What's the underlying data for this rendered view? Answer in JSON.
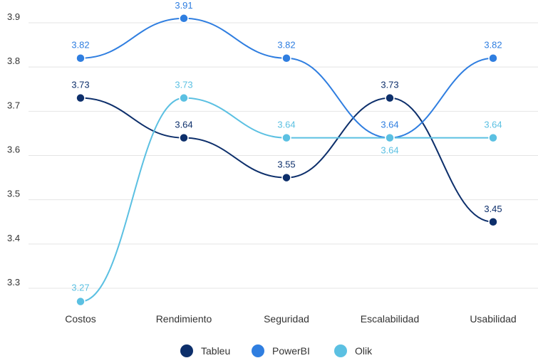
{
  "chart_data": {
    "type": "line",
    "title": "",
    "xlabel": "",
    "ylabel": "",
    "categories": [
      "Costos",
      "Rendimiento",
      "Seguridad",
      "Escalabilidad",
      "Usabilidad"
    ],
    "y_ticks": [
      "3.3",
      "3.4",
      "3.5",
      "3.6",
      "3.7",
      "3.8",
      "3.9"
    ],
    "ylim": [
      3.24,
      3.96
    ],
    "grid": true,
    "legend_position": "bottom-center",
    "series": [
      {
        "name": "Tableu",
        "color": "#0d2f6b",
        "values": [
          3.73,
          3.64,
          3.55,
          3.73,
          3.45
        ],
        "labels": [
          "3.73",
          "3.64",
          "3.55",
          "3.73",
          "3.45"
        ]
      },
      {
        "name": "PowerBI",
        "color": "#2f7ee0",
        "values": [
          3.82,
          3.91,
          3.82,
          3.64,
          3.82
        ],
        "labels": [
          "3.82",
          "3.91",
          "3.82",
          "3.64",
          "3.82"
        ]
      },
      {
        "name": "Olik",
        "color": "#5bc0e2",
        "values": [
          3.27,
          3.73,
          3.64,
          3.64,
          3.64
        ],
        "labels": [
          "3.27",
          "3.73",
          "3.64",
          "3.64",
          "3.64"
        ]
      }
    ]
  }
}
